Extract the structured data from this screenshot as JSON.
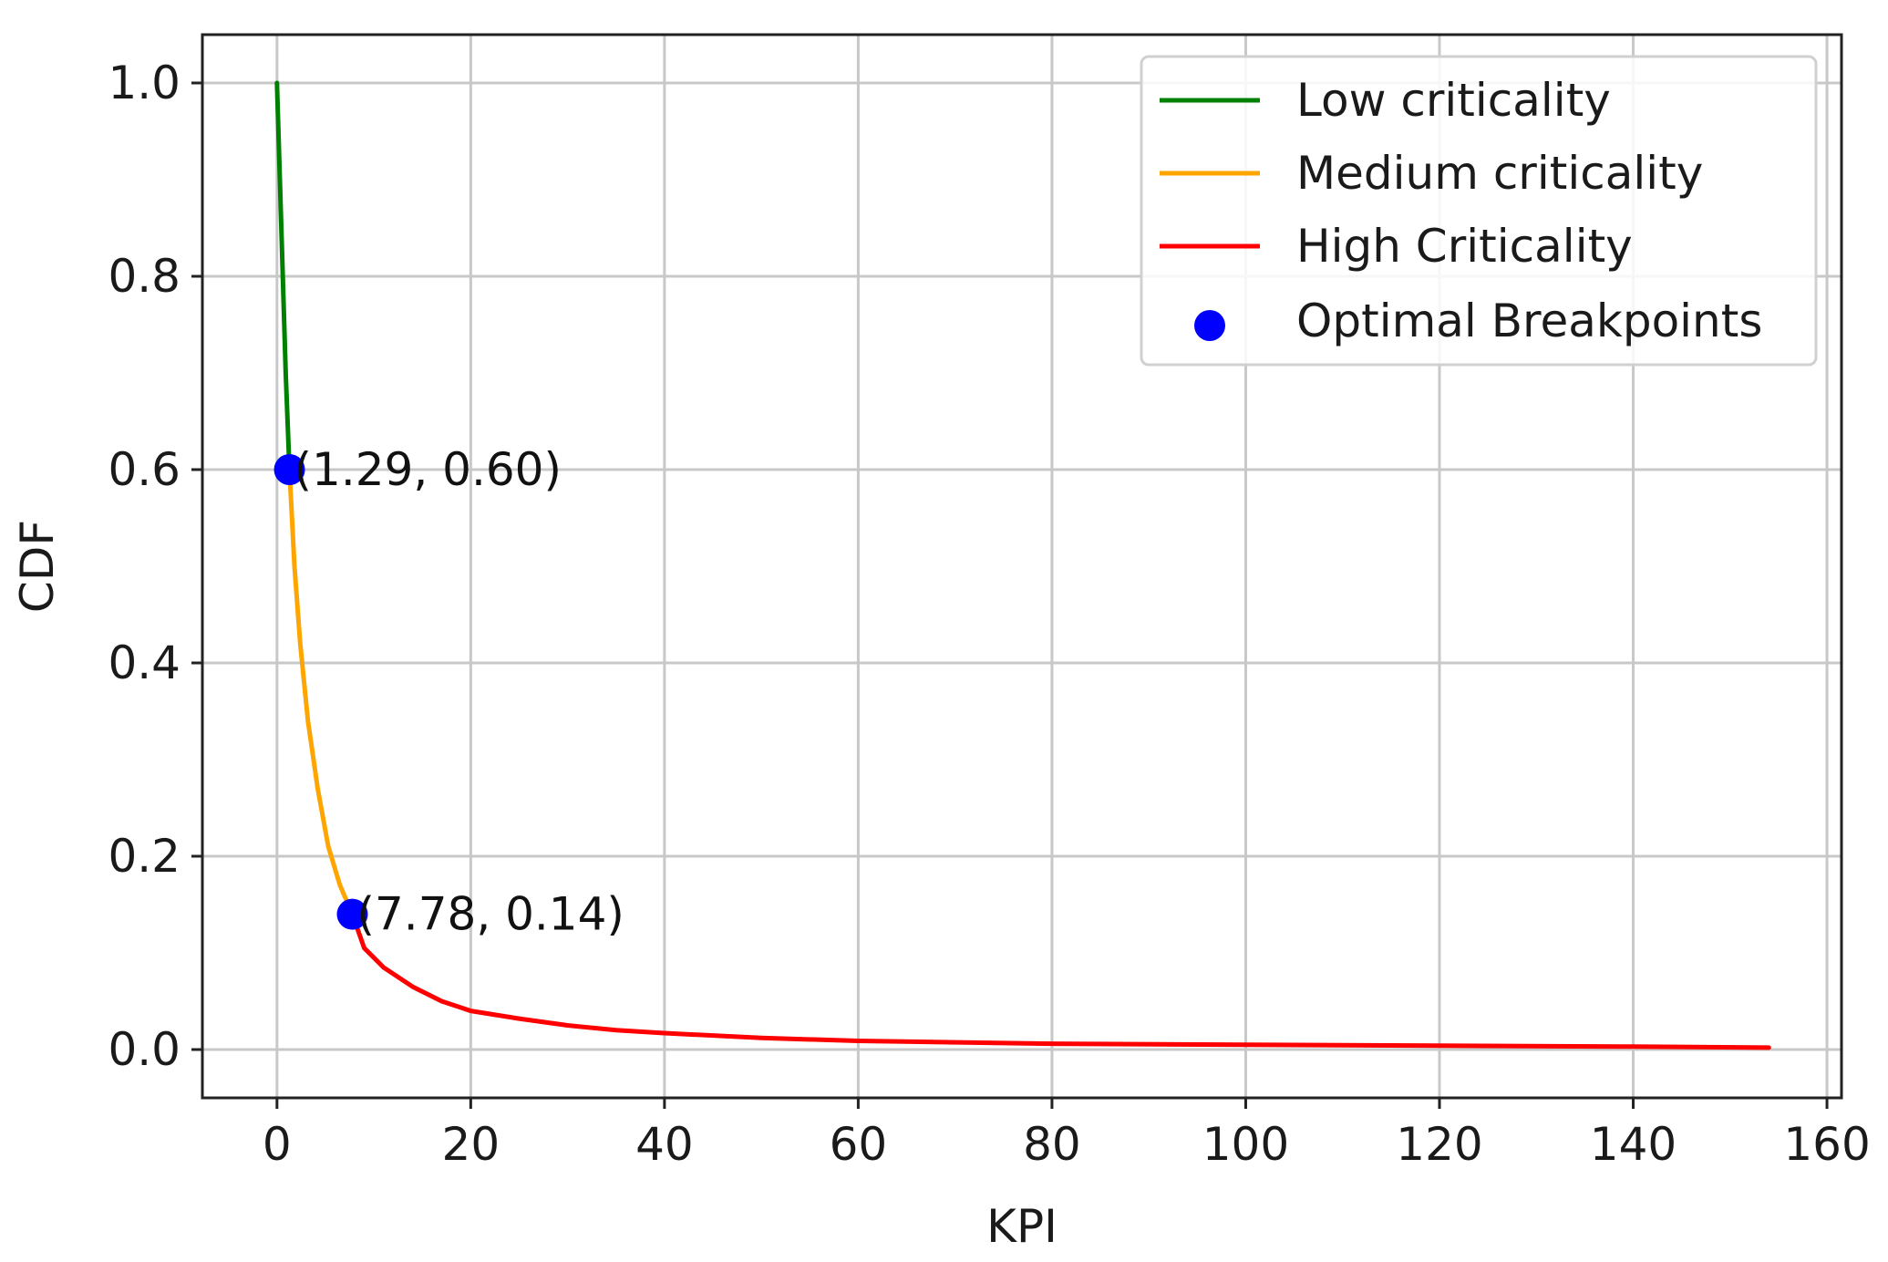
{
  "chart_data": {
    "type": "line",
    "xlabel": "KPI",
    "ylabel": "CDF",
    "xlim": [
      -7.7,
      161.5
    ],
    "ylim": [
      -0.05,
      1.05
    ],
    "xticks": [
      0,
      20,
      40,
      60,
      80,
      100,
      120,
      140,
      160
    ],
    "yticks": [
      0.0,
      0.2,
      0.4,
      0.6,
      0.8,
      1.0
    ],
    "xtick_labels": [
      "0",
      "20",
      "40",
      "60",
      "80",
      "100",
      "120",
      "140",
      "160"
    ],
    "ytick_labels": [
      "0.0",
      "0.2",
      "0.4",
      "0.6",
      "0.8",
      "1.0"
    ],
    "grid": true,
    "legend_position": "top-right",
    "series": [
      {
        "name": "Low criticality",
        "color": "#008000",
        "x": [
          0,
          0.3,
          0.6,
          0.9,
          1.29
        ],
        "y": [
          1.0,
          0.9,
          0.8,
          0.7,
          0.6
        ]
      },
      {
        "name": "Medium criticality",
        "color": "#FFA500",
        "x": [
          1.29,
          1.8,
          2.4,
          3.2,
          4.2,
          5.3,
          6.5,
          7.78
        ],
        "y": [
          0.6,
          0.5,
          0.42,
          0.34,
          0.27,
          0.21,
          0.17,
          0.14
        ]
      },
      {
        "name": "High Criticality",
        "color": "#FF0000",
        "x": [
          7.78,
          9,
          11,
          14,
          17,
          20,
          25,
          30,
          35,
          40,
          50,
          60,
          80,
          100,
          120,
          140,
          154
        ],
        "y": [
          0.14,
          0.105,
          0.085,
          0.065,
          0.05,
          0.04,
          0.032,
          0.025,
          0.02,
          0.017,
          0.012,
          0.009,
          0.006,
          0.005,
          0.004,
          0.003,
          0.002
        ]
      }
    ],
    "breakpoints": {
      "name": "Optimal Breakpoints",
      "color": "#0000FF",
      "points": [
        {
          "x": 1.29,
          "y": 0.6,
          "label": "(1.29, 0.60)"
        },
        {
          "x": 7.78,
          "y": 0.14,
          "label": "(7.78, 0.14)"
        }
      ]
    }
  }
}
